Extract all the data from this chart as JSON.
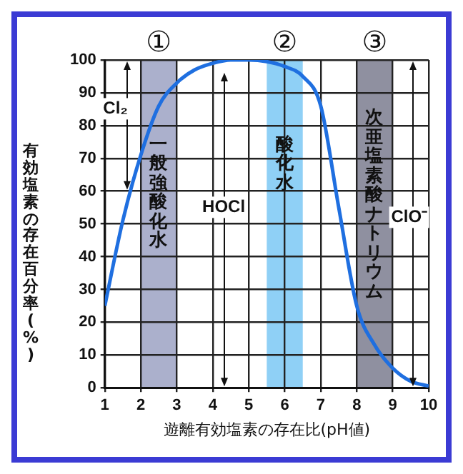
{
  "chart_data": {
    "type": "line",
    "xlabel": "遊離有効塩素の存在比(pH値)",
    "ylabel": "有効塩素の存在百分率(%)",
    "x": [
      1,
      1.5,
      2,
      2.5,
      3,
      3.5,
      4,
      4.5,
      5,
      5.5,
      6,
      6.5,
      7,
      7.5,
      8,
      8.5,
      9,
      9.5,
      10
    ],
    "series": [
      {
        "color": "#1f6fe0",
        "values": [
          25,
          51,
          71,
          86,
          93,
          97,
          99,
          100,
          100,
          99.5,
          98,
          95,
          86,
          55,
          25,
          13,
          6,
          2,
          0.5
        ]
      }
    ],
    "xlim": [
      1,
      10
    ],
    "xticks": [
      1,
      2,
      3,
      4,
      5,
      6,
      7,
      8,
      9,
      10
    ],
    "ylim": [
      0,
      100
    ],
    "yticks": [
      0,
      10,
      20,
      30,
      40,
      50,
      60,
      70,
      80,
      90,
      100
    ],
    "grid": true,
    "legend": false,
    "marker": "none",
    "line_style": "solid",
    "bands": [
      {
        "axis": "x",
        "from": 2,
        "to": 3,
        "label": "一般強酸化水",
        "color": "#abb0cc"
      },
      {
        "axis": "x",
        "from": 5.5,
        "to": 6.5,
        "label": "酸化水",
        "color": "#8fd0f6"
      },
      {
        "axis": "x",
        "from": 8,
        "to": 9,
        "label": "次亜塩素酸ナトリウム",
        "color": "#8f90a0"
      }
    ],
    "annotations": [
      "①",
      "②",
      "③",
      "Cl₂",
      "HOCl",
      "ClO⁻"
    ]
  }
}
